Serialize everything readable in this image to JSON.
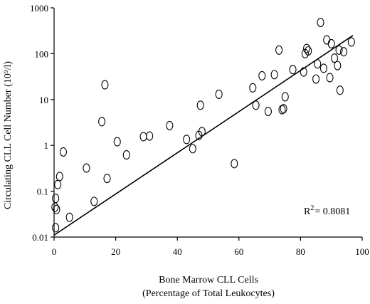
{
  "chart_data": {
    "type": "scatter",
    "xlabel": "Bone Marrow CLL Cells",
    "xlabel_line2": "(Percentage of Total Leukocytes)",
    "ylabel": "Circulating CLL Cell Number (10⁹/l)",
    "xlim": [
      0,
      100
    ],
    "ylim": [
      0.01,
      1000
    ],
    "yscale": "log",
    "x_ticks": [
      "0",
      "20",
      "40",
      "60",
      "80",
      "100"
    ],
    "y_ticks": [
      "0.01",
      "0.1",
      "1",
      "10",
      "100",
      "1000"
    ],
    "grid": false,
    "annotation": {
      "prefix": "R",
      "sup": "2",
      "suffix": "= 0.8081"
    },
    "trendline": {
      "x": [
        0,
        97
      ],
      "y": [
        0.011,
        250
      ]
    },
    "points": [
      {
        "x": 0.5,
        "y": 0.016
      },
      {
        "x": 0.8,
        "y": 0.04
      },
      {
        "x": 0.3,
        "y": 0.045
      },
      {
        "x": 0.5,
        "y": 0.07
      },
      {
        "x": 1.2,
        "y": 0.14
      },
      {
        "x": 1.8,
        "y": 0.21
      },
      {
        "x": 3,
        "y": 0.72
      },
      {
        "x": 5,
        "y": 0.027
      },
      {
        "x": 10.5,
        "y": 0.32
      },
      {
        "x": 13,
        "y": 0.06
      },
      {
        "x": 15.5,
        "y": 3.3
      },
      {
        "x": 16.5,
        "y": 21
      },
      {
        "x": 17.2,
        "y": 0.19
      },
      {
        "x": 20.5,
        "y": 1.2
      },
      {
        "x": 23.5,
        "y": 0.62
      },
      {
        "x": 29,
        "y": 1.55
      },
      {
        "x": 31,
        "y": 1.6
      },
      {
        "x": 37.5,
        "y": 2.7
      },
      {
        "x": 43,
        "y": 1.35
      },
      {
        "x": 45,
        "y": 0.85
      },
      {
        "x": 47,
        "y": 1.65
      },
      {
        "x": 47.5,
        "y": 7.5
      },
      {
        "x": 48,
        "y": 2
      },
      {
        "x": 53.5,
        "y": 13
      },
      {
        "x": 58.5,
        "y": 0.4
      },
      {
        "x": 64.5,
        "y": 18
      },
      {
        "x": 65.5,
        "y": 7.5
      },
      {
        "x": 67.5,
        "y": 33
      },
      {
        "x": 69.5,
        "y": 5.5
      },
      {
        "x": 71.5,
        "y": 35
      },
      {
        "x": 73,
        "y": 120
      },
      {
        "x": 74,
        "y": 6
      },
      {
        "x": 74.5,
        "y": 6.3
      },
      {
        "x": 75,
        "y": 11.5
      },
      {
        "x": 77.5,
        "y": 45
      },
      {
        "x": 81,
        "y": 40
      },
      {
        "x": 81.5,
        "y": 100
      },
      {
        "x": 82,
        "y": 130
      },
      {
        "x": 82.5,
        "y": 115
      },
      {
        "x": 85,
        "y": 28
      },
      {
        "x": 85.5,
        "y": 60
      },
      {
        "x": 86.5,
        "y": 480
      },
      {
        "x": 87.5,
        "y": 48
      },
      {
        "x": 88.5,
        "y": 200
      },
      {
        "x": 89.5,
        "y": 30
      },
      {
        "x": 90,
        "y": 165
      },
      {
        "x": 91,
        "y": 80
      },
      {
        "x": 92,
        "y": 55
      },
      {
        "x": 92.5,
        "y": 120
      },
      {
        "x": 92.8,
        "y": 16
      },
      {
        "x": 94,
        "y": 110
      },
      {
        "x": 96.5,
        "y": 180
      }
    ]
  }
}
